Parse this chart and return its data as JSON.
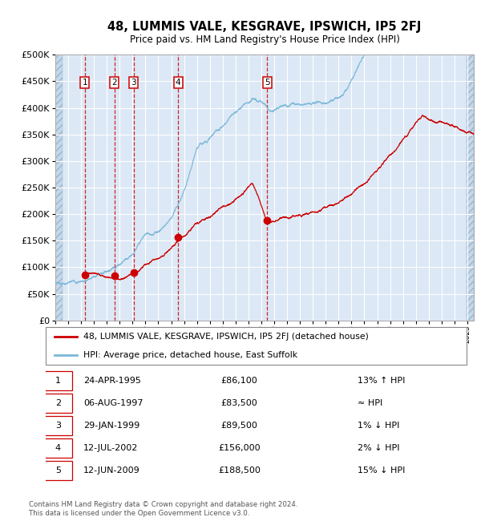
{
  "title": "48, LUMMIS VALE, KESGRAVE, IPSWICH, IP5 2FJ",
  "subtitle": "Price paid vs. HM Land Registry's House Price Index (HPI)",
  "plot_bg_color": "#dce8f5",
  "grid_color": "#ffffff",
  "hpi_line_color": "#7ab8d9",
  "price_line_color": "#cc0000",
  "vline_color": "#cc0000",
  "sale_marker_color": "#cc0000",
  "ylim": [
    0,
    500000
  ],
  "yticks": [
    0,
    50000,
    100000,
    150000,
    200000,
    250000,
    300000,
    350000,
    400000,
    450000,
    500000
  ],
  "sales": [
    {
      "label": "1",
      "price": 86100,
      "x": 1995.29
    },
    {
      "label": "2",
      "price": 83500,
      "x": 1997.58
    },
    {
      "label": "3",
      "price": 89500,
      "x": 1999.08
    },
    {
      "label": "4",
      "price": 156000,
      "x": 2002.54
    },
    {
      "label": "5",
      "price": 188500,
      "x": 2009.46
    }
  ],
  "legend_entries": [
    {
      "label": "48, LUMMIS VALE, KESGRAVE, IPSWICH, IP5 2FJ (detached house)",
      "color": "#cc0000"
    },
    {
      "label": "HPI: Average price, detached house, East Suffolk",
      "color": "#7ab8d9"
    }
  ],
  "table_rows": [
    {
      "num": "1",
      "date": "24-APR-1995",
      "price": "£86,100",
      "hpi": "13% ↑ HPI"
    },
    {
      "num": "2",
      "date": "06-AUG-1997",
      "price": "£83,500",
      "hpi": "≈ HPI"
    },
    {
      "num": "3",
      "date": "29-JAN-1999",
      "price": "£89,500",
      "hpi": "1% ↓ HPI"
    },
    {
      "num": "4",
      "date": "12-JUL-2002",
      "price": "£156,000",
      "hpi": "2% ↓ HPI"
    },
    {
      "num": "5",
      "date": "12-JUN-2009",
      "price": "£188,500",
      "hpi": "15% ↓ HPI"
    }
  ],
  "footnote": "Contains HM Land Registry data © Crown copyright and database right 2024.\nThis data is licensed under the Open Government Licence v3.0.",
  "xmin": 1993.0,
  "xmax": 2025.5
}
